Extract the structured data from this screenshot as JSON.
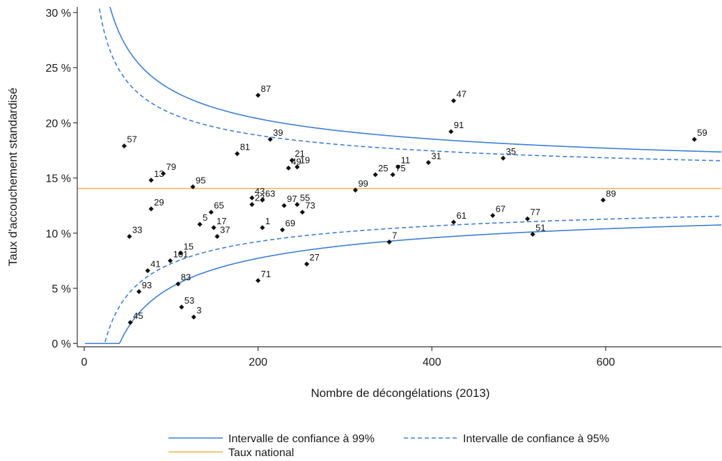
{
  "chart_data": {
    "type": "scatter",
    "xlabel": "Nombre de décongélations (2013)",
    "ylabel": "Taux d'accouchement standardisé",
    "xlim": [
      -8,
      733
    ],
    "ylim": [
      -0.3,
      30.5
    ],
    "x_ticks": [
      {
        "value": 0,
        "label": "0"
      },
      {
        "value": 200,
        "label": "200"
      },
      {
        "value": 400,
        "label": "400"
      },
      {
        "value": 600,
        "label": "600"
      }
    ],
    "y_ticks": [
      {
        "value": 0,
        "label": "0 %"
      },
      {
        "value": 5,
        "label": "5 %"
      },
      {
        "value": 10,
        "label": "10 %"
      },
      {
        "value": 15,
        "label": "15 %"
      },
      {
        "value": 20,
        "label": "20 %"
      },
      {
        "value": 25,
        "label": "25 %"
      },
      {
        "value": 30,
        "label": "30 %"
      }
    ],
    "grid": false,
    "national_rate": 14.05,
    "colors": {
      "ci_lines": "#3b7dd8",
      "national": "#f0b24a",
      "points": "#111111",
      "axis": "#333333"
    },
    "points": [
      {
        "label": "57",
        "x": 46,
        "y": 17.9
      },
      {
        "label": "13",
        "x": 77,
        "y": 14.8
      },
      {
        "label": "79",
        "x": 91,
        "y": 15.4
      },
      {
        "label": "29",
        "x": 77,
        "y": 12.2
      },
      {
        "label": "33",
        "x": 52,
        "y": 9.7
      },
      {
        "label": "41",
        "x": 73,
        "y": 6.6
      },
      {
        "label": "101",
        "x": 99,
        "y": 7.5
      },
      {
        "label": "15",
        "x": 111,
        "y": 8.2
      },
      {
        "label": "93",
        "x": 63,
        "y": 4.7
      },
      {
        "label": "83",
        "x": 108,
        "y": 5.4
      },
      {
        "label": "53",
        "x": 112,
        "y": 3.3
      },
      {
        "label": "45",
        "x": 53,
        "y": 1.9
      },
      {
        "label": "3",
        "x": 126,
        "y": 2.4
      },
      {
        "label": "95",
        "x": 125,
        "y": 14.2
      },
      {
        "label": "65",
        "x": 146,
        "y": 11.9
      },
      {
        "label": "5",
        "x": 133,
        "y": 10.8
      },
      {
        "label": "17",
        "x": 149,
        "y": 10.5
      },
      {
        "label": "37",
        "x": 153,
        "y": 9.7
      },
      {
        "label": "87",
        "x": 200,
        "y": 22.5
      },
      {
        "label": "81",
        "x": 176,
        "y": 17.2
      },
      {
        "label": "39",
        "x": 214,
        "y": 18.5
      },
      {
        "label": "21",
        "x": 239,
        "y": 16.6
      },
      {
        "label": "49",
        "x": 235,
        "y": 15.9
      },
      {
        "label": "19",
        "x": 245,
        "y": 16.0
      },
      {
        "label": "43",
        "x": 193,
        "y": 13.2
      },
      {
        "label": "23",
        "x": 193,
        "y": 12.6
      },
      {
        "label": "63",
        "x": 205,
        "y": 13.0
      },
      {
        "label": "97",
        "x": 230,
        "y": 12.5
      },
      {
        "label": "55",
        "x": 245,
        "y": 12.6
      },
      {
        "label": "73",
        "x": 251,
        "y": 11.9
      },
      {
        "label": "1",
        "x": 205,
        "y": 10.5
      },
      {
        "label": "69",
        "x": 228,
        "y": 10.3
      },
      {
        "label": "71",
        "x": 200,
        "y": 5.7
      },
      {
        "label": "27",
        "x": 256,
        "y": 7.2
      },
      {
        "label": "99",
        "x": 312,
        "y": 13.9
      },
      {
        "label": "25",
        "x": 335,
        "y": 15.3
      },
      {
        "label": "75",
        "x": 355,
        "y": 15.3
      },
      {
        "label": "11",
        "x": 361,
        "y": 16.0
      },
      {
        "label": "31",
        "x": 396,
        "y": 16.4
      },
      {
        "label": "7",
        "x": 351,
        "y": 9.2
      },
      {
        "label": "47",
        "x": 425,
        "y": 22.0
      },
      {
        "label": "91",
        "x": 422,
        "y": 19.2
      },
      {
        "label": "61",
        "x": 425,
        "y": 11.0
      },
      {
        "label": "35",
        "x": 482,
        "y": 16.8
      },
      {
        "label": "67",
        "x": 470,
        "y": 11.6
      },
      {
        "label": "77",
        "x": 510,
        "y": 11.3
      },
      {
        "label": "51",
        "x": 516,
        "y": 9.9
      },
      {
        "label": "89",
        "x": 597,
        "y": 13.0
      },
      {
        "label": "59",
        "x": 702,
        "y": 18.5
      }
    ],
    "legend": {
      "placement": "bottom",
      "items": [
        {
          "label": "Intervalle de confiance à 99%",
          "style": "solid",
          "color": "#3b7dd8"
        },
        {
          "label": "Intervalle de confiance à 95%",
          "style": "dashed",
          "color": "#3b7dd8"
        },
        {
          "label": "Taux national",
          "style": "solid",
          "color": "#f0b24a"
        }
      ]
    }
  }
}
